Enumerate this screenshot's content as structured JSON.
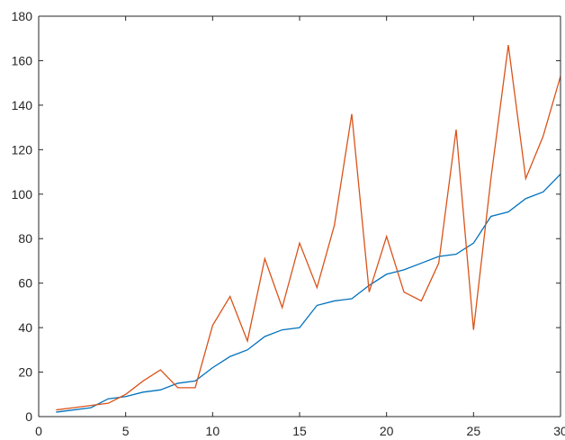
{
  "chart_data": {
    "type": "line",
    "title": "",
    "xlabel": "",
    "ylabel": "",
    "xlim": [
      0,
      30
    ],
    "ylim": [
      0,
      180
    ],
    "xticks": [
      0,
      5,
      10,
      15,
      20,
      25,
      30
    ],
    "yticks": [
      0,
      20,
      40,
      60,
      80,
      100,
      120,
      140,
      160,
      180
    ],
    "grid": false,
    "legend": "none",
    "x": [
      1,
      2,
      3,
      4,
      5,
      6,
      7,
      8,
      9,
      10,
      11,
      12,
      13,
      14,
      15,
      16,
      17,
      18,
      19,
      20,
      21,
      22,
      23,
      24,
      25,
      26,
      27,
      28,
      29,
      30
    ],
    "series": [
      {
        "color": "#0072bd",
        "values": [
          2,
          3,
          4,
          8,
          9,
          11,
          12,
          15,
          16,
          22,
          27,
          30,
          36,
          39,
          40,
          50,
          52,
          53,
          59,
          64,
          66,
          69,
          72,
          73,
          78,
          90,
          92,
          98,
          101,
          109
        ]
      },
      {
        "color": "#d95319",
        "values": [
          3,
          4,
          5,
          6,
          10,
          16,
          21,
          13,
          13,
          41,
          54,
          34,
          71,
          49,
          78,
          58,
          86,
          136,
          56,
          81,
          56,
          52,
          69,
          129,
          39,
          107,
          167,
          107,
          126,
          153
        ]
      }
    ]
  }
}
